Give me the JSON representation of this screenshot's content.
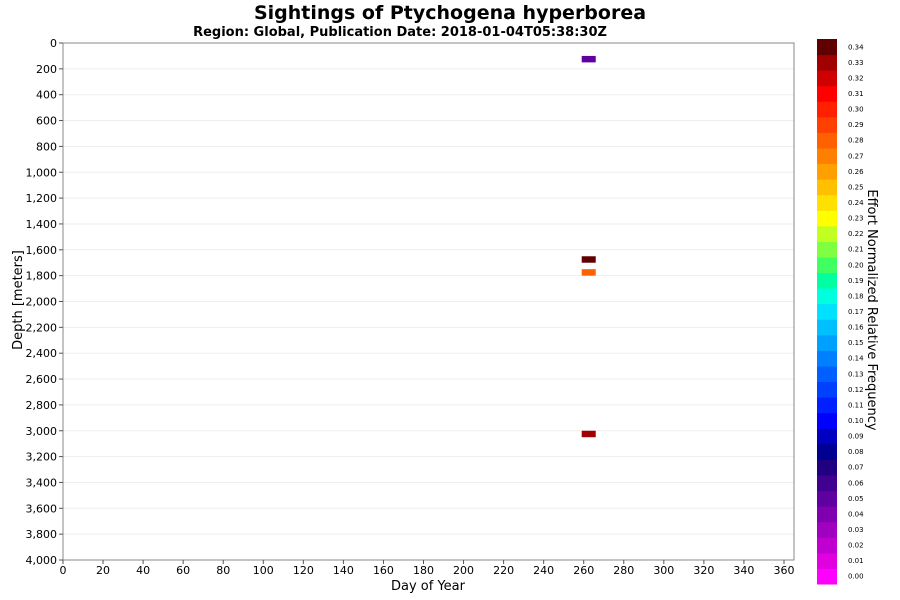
{
  "chart_data": {
    "type": "heatmap",
    "title": "Sightings of Ptychogena hyperborea",
    "subtitle": "Region: Global, Publication Date: 2018-01-04T05:38:30Z",
    "xlabel": "Day of Year",
    "ylabel": "Depth [meters]",
    "xlim": [
      0,
      365
    ],
    "ylim": [
      0,
      4000
    ],
    "y_inverted": true,
    "x_ticks": [
      0,
      20,
      40,
      60,
      80,
      100,
      120,
      140,
      160,
      180,
      200,
      220,
      240,
      260,
      280,
      300,
      320,
      340,
      360
    ],
    "y_ticks": [
      0,
      200,
      400,
      600,
      800,
      1000,
      1200,
      1400,
      1600,
      1800,
      2000,
      2200,
      2400,
      2600,
      2800,
      3000,
      3200,
      3400,
      3600,
      3800,
      4000
    ],
    "y_tick_labels": [
      "0",
      "200",
      "400",
      "600",
      "800",
      "1,000",
      "1,200",
      "1,400",
      "1,600",
      "1,800",
      "2,000",
      "2,200",
      "2,400",
      "2,600",
      "2,800",
      "3,000",
      "3,200",
      "3,400",
      "3,600",
      "3,800",
      "4,000"
    ],
    "grid": true,
    "cells": [
      {
        "day_start": 259,
        "day_end": 266,
        "depth_top": 100,
        "depth_bottom": 150,
        "value": 0.05
      },
      {
        "day_start": 259,
        "day_end": 266,
        "depth_top": 1650,
        "depth_bottom": 1700,
        "value": 0.34
      },
      {
        "day_start": 259,
        "day_end": 266,
        "depth_top": 1750,
        "depth_bottom": 1800,
        "value": 0.28
      },
      {
        "day_start": 259,
        "day_end": 266,
        "depth_top": 3000,
        "depth_bottom": 3050,
        "value": 0.33
      }
    ],
    "colorbar": {
      "label": "Effort Normalized Relative Frequency",
      "min": 0.0,
      "max": 0.34,
      "ticks": [
        "0.00",
        "0.01",
        "0.02",
        "0.03",
        "0.04",
        "0.05",
        "0.06",
        "0.07",
        "0.08",
        "0.09",
        "0.10",
        "0.11",
        "0.12",
        "0.13",
        "0.14",
        "0.15",
        "0.16",
        "0.17",
        "0.18",
        "0.19",
        "0.20",
        "0.21",
        "0.22",
        "0.23",
        "0.24",
        "0.25",
        "0.26",
        "0.27",
        "0.28",
        "0.29",
        "0.30",
        "0.31",
        "0.32",
        "0.33",
        "0.34"
      ],
      "colors": [
        "#ff00ff",
        "#e000e0",
        "#c000d0",
        "#a000c0",
        "#8000b0",
        "#6000a0",
        "#400090",
        "#200080",
        "#000090",
        "#0000c0",
        "#0000ff",
        "#0020ff",
        "#0040ff",
        "#0060ff",
        "#0080ff",
        "#00a0ff",
        "#00c0ff",
        "#00e0ff",
        "#00ffe0",
        "#00ffa0",
        "#40ff60",
        "#80ff40",
        "#c0ff20",
        "#ffff00",
        "#ffe000",
        "#ffc000",
        "#ffa000",
        "#ff8000",
        "#ff6000",
        "#ff4000",
        "#ff2000",
        "#ff0000",
        "#d00000",
        "#a00000",
        "#600000"
      ]
    }
  }
}
